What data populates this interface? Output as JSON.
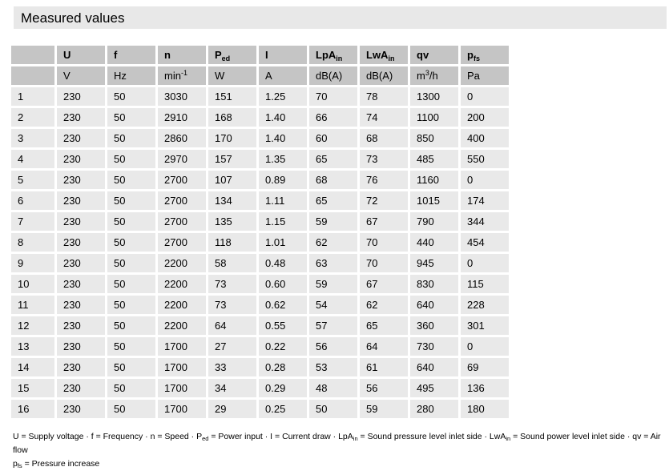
{
  "title": "Measured values",
  "colors": {
    "title_band_bg": "#e8e8e8",
    "header_cell_bg": "#c5c5c5",
    "data_cell_bg": "#e9e9e9",
    "text": "#000000",
    "page_bg": "#ffffff"
  },
  "table": {
    "columns": [
      {
        "base": "",
        "sub": "",
        "unit": {
          "pre": "",
          "sup": "",
          "post": ""
        }
      },
      {
        "base": "U",
        "sub": "",
        "unit": {
          "pre": "V",
          "sup": "",
          "post": ""
        }
      },
      {
        "base": "f",
        "sub": "",
        "unit": {
          "pre": "Hz",
          "sup": "",
          "post": ""
        }
      },
      {
        "base": "n",
        "sub": "",
        "unit": {
          "pre": "min",
          "sup": "-1",
          "post": ""
        }
      },
      {
        "base": "P",
        "sub": "ed",
        "unit": {
          "pre": "W",
          "sup": "",
          "post": ""
        }
      },
      {
        "base": "I",
        "sub": "",
        "unit": {
          "pre": "A",
          "sup": "",
          "post": ""
        }
      },
      {
        "base": "LpA",
        "sub": "in",
        "unit": {
          "pre": "dB(A)",
          "sup": "",
          "post": ""
        }
      },
      {
        "base": "LwA",
        "sub": "in",
        "unit": {
          "pre": "dB(A)",
          "sup": "",
          "post": ""
        }
      },
      {
        "base": "qv",
        "sub": "",
        "unit": {
          "pre": "m",
          "sup": "3",
          "post": "/h"
        }
      },
      {
        "base": "p",
        "sub": "fs",
        "unit": {
          "pre": "Pa",
          "sup": "",
          "post": ""
        }
      }
    ],
    "rows": [
      [
        "1",
        "230",
        "50",
        "3030",
        "151",
        "1.25",
        "70",
        "78",
        "1300",
        "0"
      ],
      [
        "2",
        "230",
        "50",
        "2910",
        "168",
        "1.40",
        "66",
        "74",
        "1100",
        "200"
      ],
      [
        "3",
        "230",
        "50",
        "2860",
        "170",
        "1.40",
        "60",
        "68",
        "850",
        "400"
      ],
      [
        "4",
        "230",
        "50",
        "2970",
        "157",
        "1.35",
        "65",
        "73",
        "485",
        "550"
      ],
      [
        "5",
        "230",
        "50",
        "2700",
        "107",
        "0.89",
        "68",
        "76",
        "1160",
        "0"
      ],
      [
        "6",
        "230",
        "50",
        "2700",
        "134",
        "1.11",
        "65",
        "72",
        "1015",
        "174"
      ],
      [
        "7",
        "230",
        "50",
        "2700",
        "135",
        "1.15",
        "59",
        "67",
        "790",
        "344"
      ],
      [
        "8",
        "230",
        "50",
        "2700",
        "118",
        "1.01",
        "62",
        "70",
        "440",
        "454"
      ],
      [
        "9",
        "230",
        "50",
        "2200",
        "58",
        "0.48",
        "63",
        "70",
        "945",
        "0"
      ],
      [
        "10",
        "230",
        "50",
        "2200",
        "73",
        "0.60",
        "59",
        "67",
        "830",
        "115"
      ],
      [
        "11",
        "230",
        "50",
        "2200",
        "73",
        "0.62",
        "54",
        "62",
        "640",
        "228"
      ],
      [
        "12",
        "230",
        "50",
        "2200",
        "64",
        "0.55",
        "57",
        "65",
        "360",
        "301"
      ],
      [
        "13",
        "230",
        "50",
        "1700",
        "27",
        "0.22",
        "56",
        "64",
        "730",
        "0"
      ],
      [
        "14",
        "230",
        "50",
        "1700",
        "33",
        "0.28",
        "53",
        "61",
        "640",
        "69"
      ],
      [
        "15",
        "230",
        "50",
        "1700",
        "34",
        "0.29",
        "48",
        "56",
        "495",
        "136"
      ],
      [
        "16",
        "230",
        "50",
        "1700",
        "29",
        "0.25",
        "50",
        "59",
        "280",
        "180"
      ]
    ]
  },
  "footnote": {
    "line1": [
      {
        "text": "U = Supply voltage · f = Frequency · n = Speed · P"
      },
      {
        "sub": "ed"
      },
      {
        "text": " = Power input · I = Current draw · LpA"
      },
      {
        "sub": "in"
      },
      {
        "text": " = Sound pressure level inlet side · LwA"
      },
      {
        "sub": "in"
      },
      {
        "text": " = Sound power level inlet side · qv = Air flow"
      }
    ],
    "line2": [
      {
        "text": "p"
      },
      {
        "sub": "fs"
      },
      {
        "text": " = Pressure increase"
      }
    ]
  }
}
